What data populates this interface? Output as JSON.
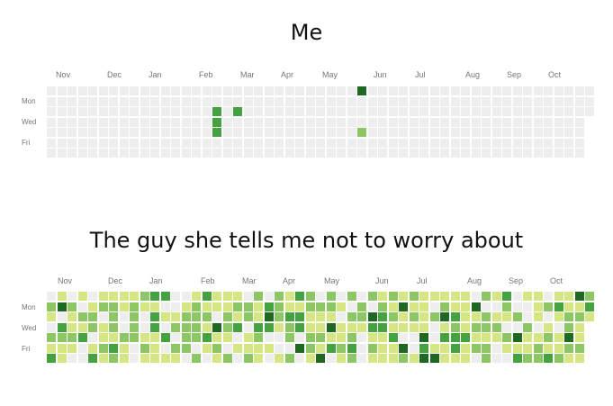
{
  "panels": [
    {
      "title": "Me",
      "months": [
        "Nov",
        "Dec",
        "Jan",
        "Feb",
        "Mar",
        "Apr",
        "May",
        "Jun",
        "Jul",
        "Aug",
        "Sep",
        "Oct"
      ],
      "days": [
        "Mon",
        "Wed",
        "Fri"
      ],
      "contributions": [
        {
          "week": 30,
          "day": 0,
          "level": 4
        },
        {
          "week": 16,
          "day": 2,
          "level": 3
        },
        {
          "week": 18,
          "day": 2,
          "level": 3
        },
        {
          "week": 16,
          "day": 3,
          "level": 3
        },
        {
          "week": 16,
          "day": 4,
          "level": 3
        },
        {
          "week": 30,
          "day": 4,
          "level": 2
        }
      ]
    },
    {
      "title": "The guy she tells me not to worry about",
      "months": [
        "Nov",
        "Dec",
        "Jan",
        "Feb",
        "Mar",
        "Apr",
        "May",
        "Jun",
        "Jul",
        "Aug",
        "Sep",
        "Oct"
      ],
      "days": [
        "Mon",
        "Wed",
        "Fri"
      ]
    }
  ],
  "colors": {
    "empty": "#eeeeee",
    "level1": "#d6e685",
    "level2": "#8cc665",
    "level3": "#44a340",
    "level4": "#1e6823",
    "label": "#767676",
    "title": "#111111"
  }
}
